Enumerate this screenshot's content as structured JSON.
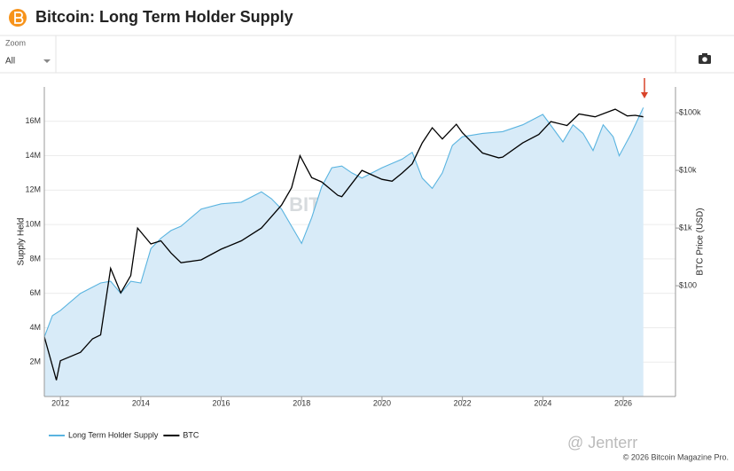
{
  "header": {
    "title": "Bitcoin: Long Term Holder Supply"
  },
  "controls": {
    "zoom_label": "Zoom",
    "zoom_value": "All"
  },
  "chart_data": {
    "type": "line",
    "watermark": "BITCOIN MAGAZINE PRO",
    "y_label": "Supply Held",
    "y2_label": "BTC Price (USD)",
    "xlim": [
      2011.6,
      2027.3
    ],
    "xticks": [
      2012,
      2014,
      2016,
      2018,
      2020,
      2022,
      2024,
      2026
    ],
    "ylim": [
      0,
      18000000
    ],
    "yticks": [
      {
        "value": 2000000,
        "label": "2M"
      },
      {
        "value": 4000000,
        "label": "4M"
      },
      {
        "value": 6000000,
        "label": "6M"
      },
      {
        "value": 8000000,
        "label": "8M"
      },
      {
        "value": 10000000,
        "label": "10M"
      },
      {
        "value": 12000000,
        "label": "12M"
      },
      {
        "value": 14000000,
        "label": "14M"
      },
      {
        "value": 16000000,
        "label": "16M"
      }
    ],
    "y2lim": [
      1.2,
      280000
    ],
    "y2scale": "log",
    "y2ticks": [
      {
        "value": 100,
        "label": "$100"
      },
      {
        "value": 1000,
        "label": "$1k"
      },
      {
        "value": 10000,
        "label": "$10k"
      },
      {
        "value": 100000,
        "label": "$100k"
      }
    ],
    "grid": true,
    "series": [
      {
        "name": "Long Term Holder Supply",
        "color": "#5ab4e0",
        "fill": "#d8ebf8",
        "axis": "y",
        "x": [
          2011.6,
          2011.8,
          2012.0,
          2012.5,
          2013.0,
          2013.25,
          2013.5,
          2013.75,
          2014.0,
          2014.25,
          2014.5,
          2014.75,
          2015.0,
          2015.5,
          2016.0,
          2016.5,
          2017.0,
          2017.25,
          2017.5,
          2017.75,
          2018.0,
          2018.25,
          2018.5,
          2018.75,
          2019.0,
          2019.25,
          2019.5,
          2019.75,
          2020.0,
          2020.5,
          2020.75,
          2021.0,
          2021.25,
          2021.5,
          2021.75,
          2022.0,
          2022.5,
          2023.0,
          2023.5,
          2024.0,
          2024.25,
          2024.5,
          2024.75,
          2025.0,
          2025.25,
          2025.5,
          2025.75,
          2025.9,
          2026.2,
          2026.5
        ],
        "values": [
          3460000,
          4700000,
          5000000,
          6000000,
          6600000,
          6700000,
          6000000,
          6700000,
          6600000,
          8600000,
          9200000,
          9650000,
          9900000,
          10900000,
          11200000,
          11300000,
          11900000,
          11500000,
          10900000,
          9900000,
          8900000,
          10400000,
          12200000,
          13300000,
          13400000,
          13000000,
          12700000,
          13000000,
          13300000,
          13800000,
          14200000,
          12700000,
          12100000,
          13000000,
          14600000,
          15100000,
          15300000,
          15400000,
          15800000,
          16400000,
          15600000,
          14800000,
          15800000,
          15300000,
          14300000,
          15800000,
          15100000,
          14000000,
          15300000,
          16800000
        ]
      },
      {
        "name": "BTC",
        "color": "#000000",
        "axis": "y2",
        "x": [
          2011.6,
          2011.9,
          2012.0,
          2012.5,
          2012.8,
          2013.0,
          2013.25,
          2013.5,
          2013.75,
          2013.92,
          2014.25,
          2014.5,
          2014.75,
          2015.0,
          2015.5,
          2016.0,
          2016.5,
          2017.0,
          2017.5,
          2017.75,
          2017.96,
          2018.25,
          2018.5,
          2018.9,
          2019.0,
          2019.5,
          2020.0,
          2020.25,
          2020.5,
          2020.75,
          2021.0,
          2021.25,
          2021.5,
          2021.85,
          2022.0,
          2022.5,
          2022.9,
          2023.0,
          2023.5,
          2023.9,
          2024.2,
          2024.6,
          2024.9,
          2025.3,
          2025.8,
          2026.1,
          2026.3,
          2026.5
        ],
        "values": [
          13,
          2.3,
          5,
          7,
          12,
          14,
          200,
          75,
          150,
          1000,
          530,
          600,
          370,
          250,
          280,
          430,
          600,
          1000,
          2500,
          5000,
          18000,
          7500,
          6300,
          3700,
          3500,
          10000,
          7000,
          6500,
          9000,
          13000,
          30000,
          55000,
          35000,
          63000,
          45000,
          20000,
          16500,
          17000,
          30000,
          42000,
          70000,
          60000,
          95000,
          85000,
          115000,
          88000,
          90000,
          85000
        ]
      }
    ]
  },
  "footer": {
    "credit": "© 2026 Bitcoin Magazine Pro.",
    "overlay": "@ Jenterr"
  }
}
